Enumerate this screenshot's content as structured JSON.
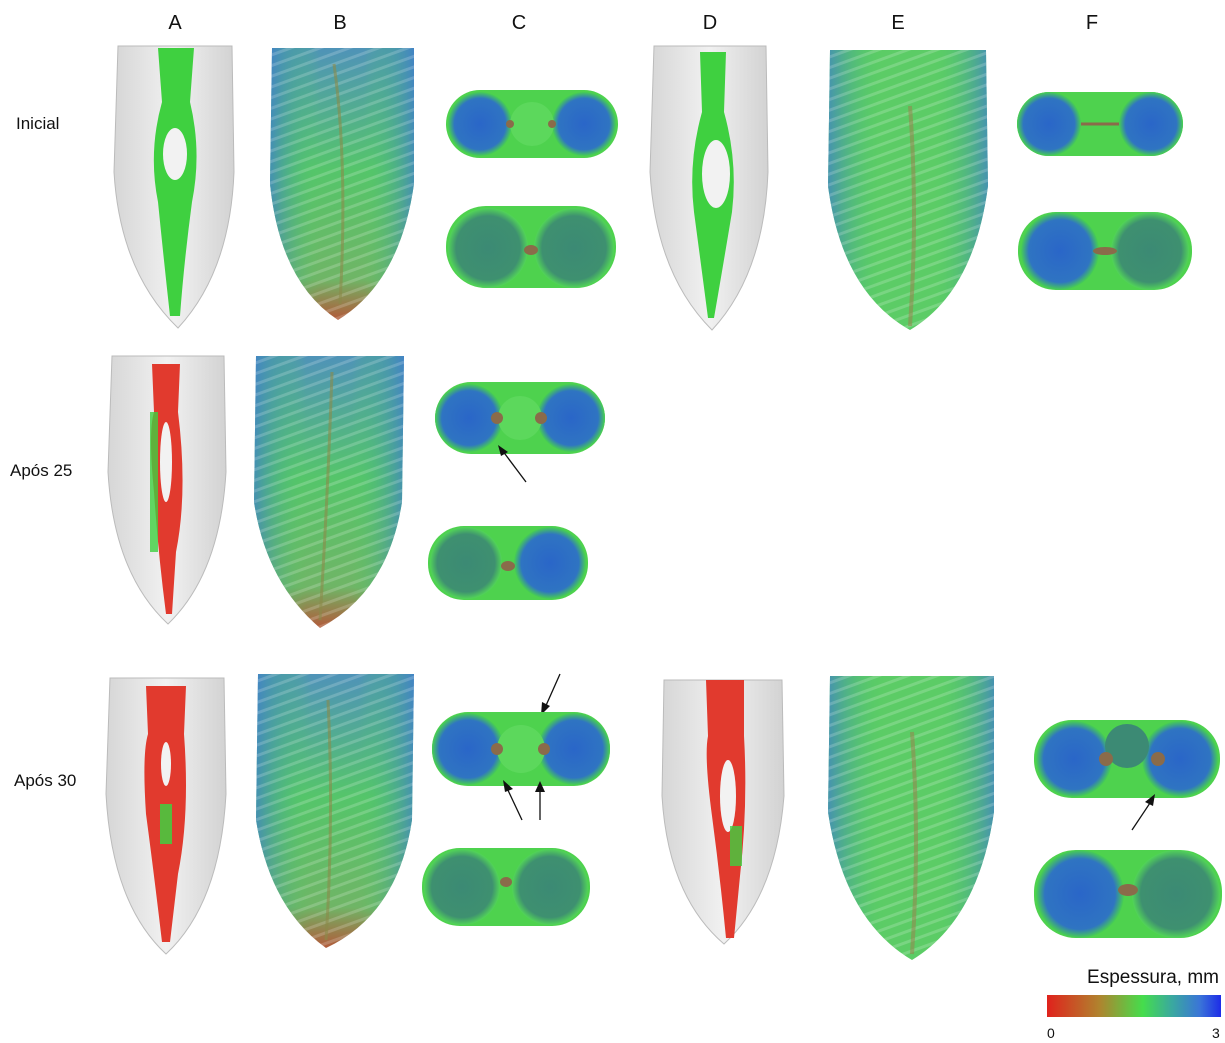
{
  "columns": [
    "A",
    "B",
    "C",
    "D",
    "E",
    "F"
  ],
  "rows": [
    "Inicial",
    "Após 25",
    "Após 30"
  ],
  "colorbar": {
    "title": "Espessura, mm",
    "min_label": "0",
    "max_label": "3",
    "colors": [
      "#e0221c",
      "#45dd4c",
      "#1d2ce8"
    ]
  }
}
